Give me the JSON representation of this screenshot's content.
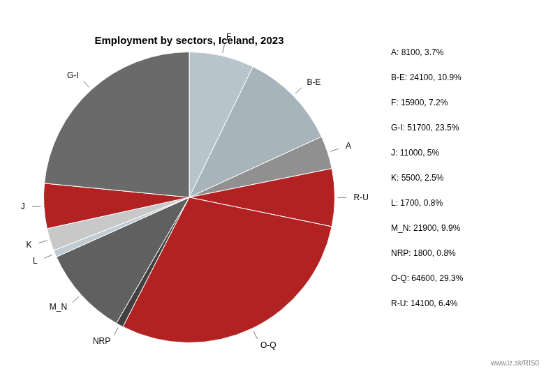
{
  "chart_data": {
    "type": "pie",
    "title": "Employment by sectors, Iceland, 2023",
    "categories": [
      "F",
      "B-E",
      "A",
      "R-U",
      "O-Q",
      "NRP",
      "M_N",
      "L",
      "K",
      "J",
      "G-I"
    ],
    "values": [
      15900,
      24100,
      8100,
      14100,
      64600,
      1800,
      21900,
      1700,
      5500,
      11000,
      51700
    ],
    "colors": [
      "#b8c4cc",
      "#a8b4bc",
      "#909090",
      "#b22222",
      "#b22222",
      "#404040",
      "#606060",
      "#c0ccd4",
      "#c8c8c8",
      "#b22222",
      "#6a6a6a"
    ],
    "annotations": [
      "A: 8100, 3.7%",
      "B-E: 24100, 10.9%",
      "F: 15900, 7.2%",
      "G-I: 51700, 23.5%",
      "J: 11000, 5%",
      "K: 5500, 2.5%",
      "L: 1700, 0.8%",
      "M_N: 21900, 9.9%",
      "NRP: 1800, 0.8%",
      "O-Q: 64600, 29.3%",
      "R-U: 14100, 6.4%",
      "www.iz.sk/RIS0"
    ]
  }
}
